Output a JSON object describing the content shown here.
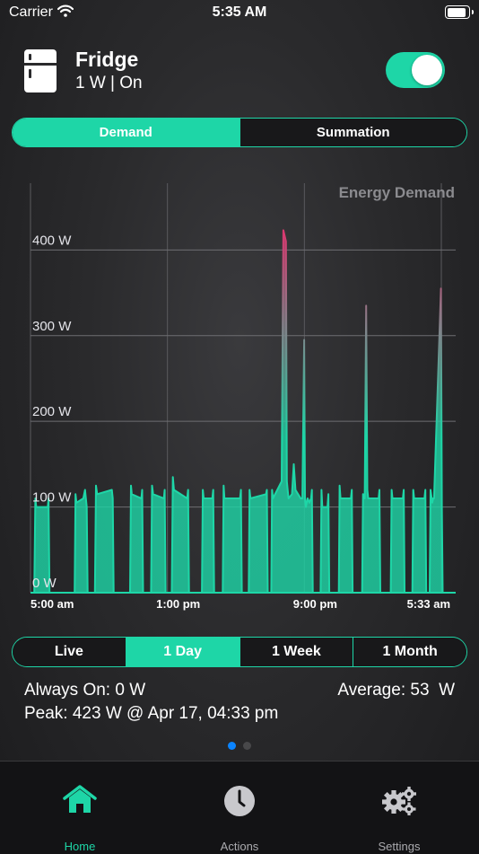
{
  "status_bar": {
    "carrier": "Carrier",
    "time": "5:35 AM"
  },
  "device": {
    "name": "Fridge",
    "status": "1 W | On",
    "toggle_on": true
  },
  "mode_tabs": [
    {
      "label": "Demand",
      "active": true
    },
    {
      "label": "Summation",
      "active": false
    }
  ],
  "range_tabs": [
    {
      "label": "Live",
      "active": false
    },
    {
      "label": "1 Day",
      "active": true
    },
    {
      "label": "1 Week",
      "active": false
    },
    {
      "label": "1 Month",
      "active": false
    }
  ],
  "stats": {
    "always_on": "Always On: 0 W",
    "average": "Average: 53  W",
    "peak": "Peak: 423 W @ Apr 17, 04:33 pm"
  },
  "page_indicator": {
    "count": 2,
    "current": 0
  },
  "tab_bar": [
    {
      "label": "Home",
      "icon": "home-icon",
      "active": true
    },
    {
      "label": "Actions",
      "icon": "clock-icon",
      "active": false
    },
    {
      "label": "Settings",
      "icon": "gears-icon",
      "active": false
    }
  ],
  "colors": {
    "accent": "#1ed6a7",
    "peak": "#e0336e",
    "dot_active": "#0a84ff"
  },
  "chart_data": {
    "type": "area",
    "title": "Energy Demand",
    "xlabel": "",
    "ylabel": "",
    "x_tick_labels": [
      "5:00 am",
      "1:00 pm",
      "9:00 pm",
      "5:33 am"
    ],
    "y_tick_labels": [
      "0 W",
      "100 W",
      "200 W",
      "300 W",
      "400 W"
    ],
    "y_ticks": [
      0,
      100,
      200,
      300,
      400
    ],
    "ylim": [
      0,
      480
    ],
    "xlim": [
      0,
      24.55
    ],
    "grid": true,
    "series": [
      {
        "x": [
          0.22,
          0.28,
          0.33,
          0.55,
          1.0,
          1.04,
          1.1,
          2.55,
          2.6,
          2.65,
          3.05,
          3.15,
          3.25,
          3.3,
          3.72,
          3.78,
          3.85,
          4.7,
          4.75,
          4.8,
          5.75,
          5.8,
          5.85,
          6.4,
          6.45,
          6.5,
          6.96,
          7.02,
          7.08,
          7.7,
          7.75,
          7.8,
          8.16,
          8.22,
          8.28,
          9.05,
          9.1,
          9.15,
          9.9,
          9.95,
          10.0,
          10.5,
          10.55,
          10.6,
          11.1,
          11.15,
          11.2,
          12.1,
          12.15,
          12.2,
          12.6,
          12.65,
          12.7,
          13.6,
          13.65,
          13.7,
          13.9,
          13.95,
          14.0,
          14.5,
          14.6,
          14.75,
          14.8,
          14.85,
          14.9,
          15.1,
          15.2,
          15.3,
          15.6,
          15.7,
          15.8,
          15.85,
          15.9,
          16.0,
          16.1,
          16.2,
          16.25,
          16.3,
          16.75,
          16.8,
          16.85,
          17.15,
          17.2,
          17.25,
          17.8,
          17.85,
          17.9,
          18.5,
          18.55,
          18.6,
          19.15,
          19.2,
          19.3,
          19.38,
          19.45,
          19.5,
          20.1,
          20.15,
          20.2,
          20.8,
          20.85,
          20.9,
          21.5,
          21.55,
          21.6,
          22.05,
          22.1,
          22.15,
          22.75,
          22.8,
          22.85,
          23.05,
          23.1,
          23.2,
          23.25,
          23.3,
          23.7,
          23.75,
          23.8
        ],
        "y": [
          0,
          110,
          100,
          100,
          100,
          110,
          0,
          0,
          115,
          105,
          110,
          120,
          100,
          0,
          0,
          125,
          115,
          120,
          110,
          0,
          0,
          125,
          115,
          110,
          120,
          0,
          0,
          125,
          115,
          110,
          120,
          0,
          0,
          135,
          120,
          110,
          120,
          0,
          0,
          120,
          110,
          110,
          120,
          0,
          0,
          125,
          110,
          110,
          120,
          0,
          0,
          120,
          110,
          115,
          120,
          0,
          0,
          120,
          110,
          130,
          423,
          410,
          130,
          120,
          110,
          115,
          150,
          120,
          110,
          110,
          295,
          110,
          100,
          110,
          105,
          110,
          120,
          0,
          0,
          120,
          100,
          100,
          115,
          0,
          0,
          125,
          110,
          110,
          120,
          0,
          0,
          115,
          110,
          335,
          120,
          110,
          110,
          120,
          0,
          0,
          120,
          110,
          110,
          120,
          0,
          0,
          120,
          110,
          110,
          120,
          0,
          0,
          120,
          105,
          110,
          110,
          355,
          100,
          0
        ]
      }
    ]
  }
}
